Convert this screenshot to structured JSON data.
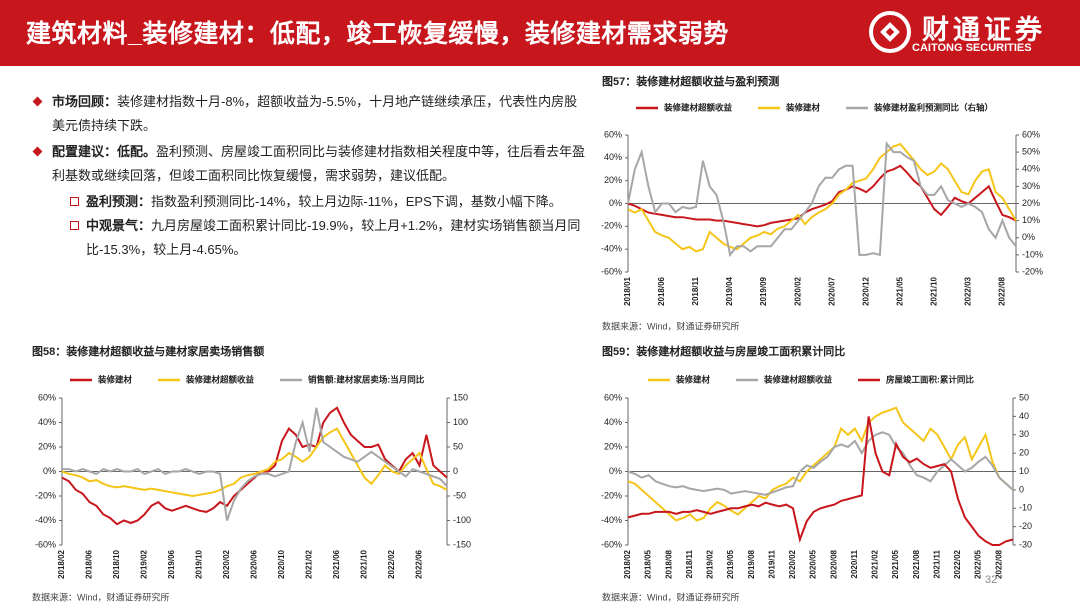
{
  "header": {
    "title": "建筑材料_装修建材：低配，竣工恢复缓慢，装修建材需求弱势",
    "logo_cn": "财通证券",
    "logo_en": "CAITONG SECURITIES"
  },
  "bullets": [
    {
      "label": "市场回顾：",
      "text": "装修建材指数十月-8%，超额收益为-5.5%，十月地产链继续承压，代表性内房股美元债持续下跌。"
    },
    {
      "label": "配置建议：低配。",
      "text": "盈利预测、房屋竣工面积同比与装修建材指数相关程度中等，往后看去年盈利基数或继续回落，但竣工面积同比恢复缓慢，需求弱势，建议低配。",
      "items": [
        {
          "label": "盈利预测：",
          "text": "指数盈利预测同比-14%，较上月边际-11%，EPS下调，基数小幅下降。"
        },
        {
          "label": "中观景气：",
          "text": "九月房屋竣工面积累计同比-19.9%，较上月+1.2%，建材实场销售额当月同比-15.3%，较上月-4.65%。"
        }
      ]
    }
  ],
  "page_number": "32",
  "chart_data": [
    {
      "type": "line",
      "title": "图57：装修建材超额收益与盈利预测",
      "source": "数据来源：Wind，财通证券研究所",
      "categories": [
        "2018/01",
        null,
        null,
        null,
        null,
        "2018/06",
        null,
        null,
        null,
        null,
        "2018/11",
        null,
        null,
        null,
        null,
        "2019/04",
        null,
        null,
        null,
        null,
        "2019/09",
        null,
        null,
        null,
        null,
        "2020/02",
        null,
        null,
        null,
        null,
        "2020/07",
        null,
        null,
        null,
        null,
        "2020/12",
        null,
        null,
        null,
        null,
        "2021/05",
        null,
        null,
        null,
        null,
        "2021/10",
        null,
        null,
        null,
        null,
        "2022/03",
        null,
        null,
        null,
        null,
        "2022/08",
        null,
        null
      ],
      "ylim": [
        -60,
        60
      ],
      "yticks": [
        {
          "value": -60,
          "label": "-60%"
        },
        {
          "value": -40,
          "label": "-40%"
        },
        {
          "value": -20,
          "label": "-20%"
        },
        {
          "value": 0,
          "label": "0%"
        },
        {
          "value": 20,
          "label": "20%"
        },
        {
          "value": 40,
          "label": "40%"
        },
        {
          "value": 60,
          "label": "60%"
        }
      ],
      "y2lim": [
        -20,
        60
      ],
      "y2ticks": [
        {
          "value": -20,
          "label": "-20%"
        },
        {
          "value": -10,
          "label": "-10%"
        },
        {
          "value": 0,
          "label": "0%"
        },
        {
          "value": 10,
          "label": "10%"
        },
        {
          "value": 20,
          "label": "20%"
        },
        {
          "value": 30,
          "label": "30%"
        },
        {
          "value": 40,
          "label": "40%"
        },
        {
          "value": 50,
          "label": "50%"
        },
        {
          "value": 60,
          "label": "60%"
        }
      ],
      "series": [
        {
          "name": "装修建材超额收益",
          "color": "#c8161d",
          "values": [
            0,
            -2,
            -5,
            -8,
            -9,
            -10,
            -11,
            -12,
            -12,
            -13,
            -14,
            -14,
            -14,
            -15,
            -15,
            -16,
            -17,
            -18,
            -19,
            -20,
            -19,
            -17,
            -16,
            -15,
            -14,
            -13,
            -8,
            -5,
            -3,
            -1,
            2,
            10,
            12,
            15,
            13,
            10,
            15,
            22,
            28,
            30,
            33,
            27,
            20,
            15,
            5,
            -5,
            -10,
            -3,
            5,
            2,
            0,
            5,
            10,
            15,
            2,
            -10,
            -12,
            -15
          ]
        },
        {
          "name": "装修建材",
          "color": "#f5c518",
          "values": [
            -5,
            -8,
            -5,
            -15,
            -25,
            -28,
            -30,
            -35,
            -40,
            -38,
            -42,
            -40,
            -25,
            -30,
            -35,
            -38,
            -40,
            -35,
            -30,
            -28,
            -25,
            -27,
            -22,
            -20,
            -15,
            -10,
            -18,
            -12,
            -8,
            -5,
            0,
            8,
            12,
            18,
            20,
            22,
            30,
            40,
            45,
            50,
            52,
            45,
            38,
            30,
            25,
            28,
            35,
            30,
            20,
            10,
            8,
            20,
            28,
            30,
            10,
            5,
            -5,
            -15
          ]
        },
        {
          "name": "装修建材盈利预测同比（右轴）",
          "color": "#a6a6a6",
          "axis": "y2",
          "values": [
            20,
            40,
            50,
            30,
            15,
            20,
            20,
            15,
            18,
            17,
            18,
            45,
            30,
            25,
            10,
            -10,
            -5,
            -5,
            -8,
            -5,
            -5,
            -5,
            0,
            5,
            5,
            10,
            15,
            20,
            30,
            35,
            35,
            40,
            42,
            42,
            -10,
            -10,
            -9,
            -10,
            55,
            50,
            50,
            47,
            45,
            30,
            25,
            25,
            30,
            22,
            20,
            18,
            20,
            18,
            15,
            5,
            0,
            10,
            0,
            -5
          ]
        }
      ]
    },
    {
      "type": "line",
      "title": "图58：装修建材超额收益与建材家居卖场销售额",
      "source": "数据来源：Wind，财通证券研究所",
      "categories": [
        "2018/02",
        null,
        null,
        null,
        "2018/06",
        null,
        null,
        null,
        "2018/10",
        null,
        null,
        null,
        "2019/02",
        null,
        null,
        null,
        "2019/06",
        null,
        null,
        null,
        "2019/10",
        null,
        null,
        null,
        "2020/02",
        null,
        null,
        null,
        "2020/06",
        null,
        null,
        null,
        "2020/10",
        null,
        null,
        null,
        "2021/02",
        null,
        null,
        null,
        "2021/06",
        null,
        null,
        null,
        "2021/10",
        null,
        null,
        null,
        "2022/02",
        null,
        null,
        null,
        "2022/06",
        null,
        null,
        null,
        null
      ],
      "ylim": [
        -60,
        60
      ],
      "yticks": [
        {
          "value": -60,
          "label": "-60%"
        },
        {
          "value": -40,
          "label": "-40%"
        },
        {
          "value": -20,
          "label": "-20%"
        },
        {
          "value": 0,
          "label": "0%"
        },
        {
          "value": 20,
          "label": "20%"
        },
        {
          "value": 40,
          "label": "40%"
        },
        {
          "value": 60,
          "label": "60%"
        }
      ],
      "y2lim": [
        -150,
        150
      ],
      "y2ticks": [
        -150,
        -100,
        -50,
        0,
        50,
        100,
        150
      ],
      "series": [
        {
          "name": "装修建材",
          "color": "#c8161d",
          "values": [
            -5,
            -8,
            -15,
            -18,
            -25,
            -28,
            -35,
            -38,
            -43,
            -40,
            -42,
            -40,
            -35,
            -28,
            -25,
            -30,
            -32,
            -30,
            -28,
            -30,
            -32,
            -33,
            -30,
            -25,
            -28,
            -20,
            -15,
            -10,
            -5,
            0,
            0,
            5,
            25,
            35,
            30,
            20,
            22,
            20,
            40,
            48,
            52,
            40,
            30,
            25,
            20,
            20,
            22,
            10,
            5,
            0,
            10,
            15,
            5,
            30,
            5,
            0,
            -5
          ]
        },
        {
          "name": "装修建材超额收益",
          "color": "#f5c518",
          "values": [
            0,
            -2,
            -3,
            -5,
            -8,
            -7,
            -10,
            -12,
            -13,
            -12,
            -13,
            -14,
            -15,
            -14,
            -15,
            -16,
            -17,
            -18,
            -19,
            -20,
            -19,
            -18,
            -17,
            -15,
            -12,
            -10,
            -5,
            -3,
            -2,
            0,
            2,
            8,
            10,
            15,
            12,
            8,
            12,
            20,
            28,
            32,
            35,
            25,
            15,
            5,
            -5,
            -10,
            -3,
            5,
            0,
            -2,
            5,
            10,
            15,
            2,
            -10,
            -12,
            -15
          ]
        },
        {
          "name": "销售额:建材家居卖场:当月同比",
          "color": "#a6a6a6",
          "axis": "y2",
          "values": [
            5,
            5,
            0,
            5,
            0,
            -5,
            5,
            0,
            5,
            0,
            0,
            5,
            -5,
            0,
            5,
            -5,
            0,
            0,
            5,
            0,
            -5,
            0,
            0,
            -5,
            -100,
            -60,
            -35,
            -20,
            -10,
            -5,
            -5,
            -10,
            -5,
            0,
            60,
            100,
            40,
            130,
            60,
            50,
            40,
            30,
            25,
            20,
            30,
            40,
            30,
            20,
            10,
            0,
            -10,
            5,
            0,
            -5,
            -10,
            -15,
            -30
          ]
        }
      ]
    },
    {
      "type": "line",
      "title": "图59：装修建材超额收益与房屋竣工面积累计同比",
      "source": "数据来源：Wind，财通证券研究所",
      "categories": [
        "2018/02",
        null,
        null,
        "2018/05",
        null,
        null,
        "2018/08",
        null,
        null,
        "2018/11",
        null,
        null,
        "2019/02",
        null,
        null,
        "2019/05",
        null,
        null,
        "2019/08",
        null,
        null,
        "2019/11",
        null,
        null,
        "2020/02",
        null,
        null,
        "2020/05",
        null,
        null,
        "2020/08",
        null,
        null,
        "2020/11",
        null,
        null,
        "2021/02",
        null,
        null,
        "2021/05",
        null,
        null,
        "2021/08",
        null,
        null,
        "2021/11",
        null,
        null,
        "2022/02",
        null,
        null,
        "2022/05",
        null,
        null,
        "2022/08",
        null,
        null
      ],
      "ylim": [
        -60,
        60
      ],
      "yticks": [
        {
          "value": -60,
          "label": "-60%"
        },
        {
          "value": -40,
          "label": "-40%"
        },
        {
          "value": -20,
          "label": "-20%"
        },
        {
          "value": 0,
          "label": "0%"
        },
        {
          "value": 20,
          "label": "20%"
        },
        {
          "value": 40,
          "label": "40%"
        },
        {
          "value": 60,
          "label": "60%"
        }
      ],
      "y2lim": [
        -30,
        50
      ],
      "y2ticks": [
        -30,
        -20,
        -10,
        0,
        10,
        20,
        30,
        40,
        50
      ],
      "series": [
        {
          "name": "装修建材",
          "color": "#f5c518",
          "values": [
            -8,
            -10,
            -15,
            -20,
            -25,
            -30,
            -35,
            -40,
            -38,
            -35,
            -40,
            -38,
            -30,
            -25,
            -28,
            -32,
            -35,
            -30,
            -25,
            -20,
            -22,
            -15,
            -12,
            -10,
            -5,
            -8,
            0,
            5,
            10,
            15,
            20,
            35,
            30,
            35,
            25,
            40,
            45,
            48,
            50,
            52,
            40,
            35,
            30,
            25,
            35,
            30,
            20,
            10,
            22,
            28,
            10,
            20,
            30,
            8,
            -5,
            -10,
            -15
          ]
        },
        {
          "name": "装修建材超额收益",
          "color": "#a6a6a6",
          "values": [
            0,
            -2,
            -5,
            -3,
            -8,
            -10,
            -12,
            -13,
            -12,
            -14,
            -15,
            -16,
            -15,
            -14,
            -15,
            -18,
            -17,
            -16,
            -17,
            -18,
            -19,
            -17,
            -15,
            -13,
            -12,
            0,
            5,
            3,
            8,
            12,
            20,
            22,
            20,
            25,
            15,
            25,
            30,
            32,
            30,
            20,
            15,
            5,
            -3,
            -5,
            -8,
            0,
            5,
            10,
            5,
            0,
            3,
            8,
            12,
            5,
            -5,
            -10,
            -15
          ]
        },
        {
          "name": "房屋竣工面积:累计同比",
          "color": "#c8161d",
          "axis": "y2",
          "values": [
            -15,
            -14,
            -13,
            -13,
            -12,
            -12,
            -12,
            -13,
            -12,
            -12,
            -11,
            -12,
            -13,
            -12,
            -11,
            -10,
            -10,
            -9,
            -8,
            -9,
            -7,
            -8,
            -9,
            -8,
            -10,
            -27,
            -17,
            -12,
            -10,
            -9,
            -8,
            -6,
            -5,
            -4,
            -3,
            40,
            20,
            10,
            8,
            25,
            18,
            15,
            17,
            14,
            12,
            13,
            14,
            10,
            -5,
            -15,
            -20,
            -25,
            -28,
            -30,
            -30,
            -28,
            -27
          ]
        }
      ]
    }
  ]
}
